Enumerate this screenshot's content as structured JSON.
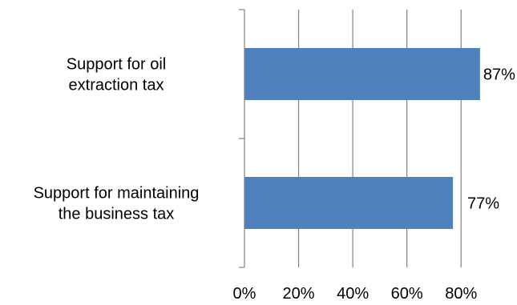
{
  "chart_data": {
    "type": "bar",
    "orientation": "horizontal",
    "title": "",
    "xlabel": "",
    "ylabel": "",
    "categories": [
      [
        "Support for oil",
        "extraction tax"
      ],
      [
        "Support for maintaining",
        "the business tax"
      ]
    ],
    "values": [
      87,
      77
    ],
    "data_labels": [
      "87%",
      "77%"
    ],
    "xlim": [
      0,
      90
    ],
    "xticks": [
      0,
      20,
      40,
      60,
      80
    ],
    "xtick_labels": [
      "0%",
      "20%",
      "40%",
      "60%",
      "80%"
    ],
    "grid": true,
    "legend": "none",
    "colors": {
      "bar": "#4F81BD",
      "grid": "#808080",
      "axis": "#808080"
    }
  }
}
